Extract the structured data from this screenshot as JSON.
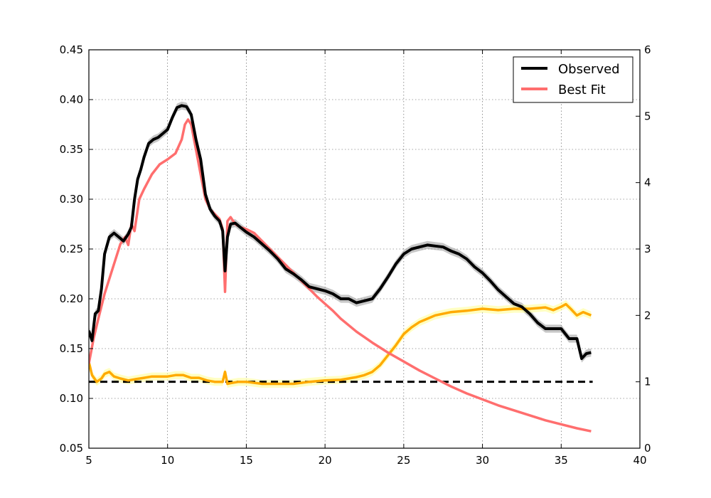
{
  "chart_data": {
    "type": "line",
    "title": "",
    "xlabel": "",
    "ylabel": "",
    "y2label": "",
    "xlim": [
      5,
      40
    ],
    "ylim": [
      0.05,
      0.45
    ],
    "y2lim": [
      0,
      6
    ],
    "x_ticks": [
      "5",
      "10",
      "15",
      "20",
      "25",
      "30",
      "35",
      "40"
    ],
    "y_ticks": [
      "0.05",
      "0.10",
      "0.15",
      "0.20",
      "0.25",
      "0.30",
      "0.35",
      "0.40",
      "0.45"
    ],
    "y2_ticks": [
      "0",
      "1",
      "2",
      "3",
      "4",
      "5",
      "6"
    ],
    "grid": true,
    "legend": {
      "placement": "top-right",
      "entries": [
        "Observed",
        "Best Fit"
      ]
    },
    "colors": {
      "observed": "#000000",
      "observed_band": "#999999",
      "best_fit": "#ff6e6e",
      "ratio": "#ffaa00",
      "ratio_band": "#ffff99",
      "reference": "#000000"
    },
    "series": [
      {
        "name": "Observed",
        "axis": "left",
        "x": [
          5.0,
          5.2,
          5.4,
          5.6,
          5.8,
          6.0,
          6.3,
          6.6,
          6.9,
          7.2,
          7.5,
          7.7,
          7.9,
          8.1,
          8.3,
          8.5,
          8.8,
          9.1,
          9.4,
          9.7,
          10.0,
          10.3,
          10.6,
          10.9,
          11.2,
          11.5,
          11.8,
          12.1,
          12.4,
          12.7,
          13.0,
          13.3,
          13.5,
          13.65,
          13.8,
          14.0,
          14.3,
          14.6,
          15.0,
          15.5,
          16.0,
          16.5,
          17.0,
          17.5,
          18.0,
          18.5,
          19.0,
          19.5,
          20.0,
          20.5,
          21.0,
          21.5,
          22.0,
          22.5,
          23.0,
          23.5,
          24.0,
          24.5,
          25.0,
          25.5,
          26.0,
          26.5,
          27.0,
          27.5,
          28.0,
          28.5,
          29.0,
          29.5,
          30.0,
          30.5,
          31.0,
          31.5,
          32.0,
          32.5,
          33.0,
          33.5,
          34.0,
          34.5,
          35.0,
          35.5,
          36.0,
          36.3,
          36.6,
          36.9
        ],
        "y": [
          0.168,
          0.158,
          0.185,
          0.188,
          0.21,
          0.245,
          0.262,
          0.266,
          0.262,
          0.258,
          0.265,
          0.272,
          0.3,
          0.32,
          0.33,
          0.342,
          0.356,
          0.36,
          0.362,
          0.366,
          0.37,
          0.382,
          0.392,
          0.394,
          0.393,
          0.385,
          0.36,
          0.34,
          0.305,
          0.29,
          0.283,
          0.278,
          0.268,
          0.228,
          0.262,
          0.275,
          0.276,
          0.272,
          0.267,
          0.262,
          0.255,
          0.248,
          0.24,
          0.23,
          0.225,
          0.219,
          0.212,
          0.21,
          0.208,
          0.205,
          0.2,
          0.2,
          0.196,
          0.198,
          0.2,
          0.21,
          0.222,
          0.235,
          0.245,
          0.25,
          0.252,
          0.254,
          0.253,
          0.252,
          0.248,
          0.245,
          0.24,
          0.232,
          0.226,
          0.218,
          0.209,
          0.202,
          0.195,
          0.192,
          0.185,
          0.176,
          0.17,
          0.17,
          0.17,
          0.16,
          0.16,
          0.14,
          0.145,
          0.146
        ]
      },
      {
        "name": "Best Fit",
        "axis": "left",
        "x": [
          5.0,
          5.3,
          5.6,
          6.0,
          6.5,
          7.0,
          7.3,
          7.5,
          7.7,
          7.9,
          8.2,
          8.5,
          9.0,
          9.5,
          10.0,
          10.5,
          10.9,
          11.1,
          11.3,
          11.5,
          11.8,
          12.1,
          12.4,
          12.7,
          13.0,
          13.3,
          13.5,
          13.65,
          13.8,
          14.0,
          14.3,
          14.6,
          15.0,
          15.5,
          16.0,
          16.5,
          17.0,
          17.5,
          18.0,
          18.5,
          19.0,
          19.5,
          20.0,
          20.5,
          21.0,
          22.0,
          23.0,
          24.0,
          25.0,
          26.0,
          27.0,
          28.0,
          29.0,
          30.0,
          31.0,
          32.0,
          33.0,
          34.0,
          35.0,
          36.0,
          36.9
        ],
        "y": [
          0.135,
          0.16,
          0.18,
          0.205,
          0.23,
          0.255,
          0.262,
          0.254,
          0.275,
          0.268,
          0.3,
          0.31,
          0.325,
          0.335,
          0.34,
          0.346,
          0.36,
          0.375,
          0.38,
          0.375,
          0.35,
          0.325,
          0.3,
          0.29,
          0.285,
          0.28,
          0.27,
          0.207,
          0.278,
          0.282,
          0.275,
          0.272,
          0.27,
          0.266,
          0.258,
          0.25,
          0.242,
          0.234,
          0.226,
          0.218,
          0.21,
          0.202,
          0.195,
          0.188,
          0.18,
          0.167,
          0.156,
          0.146,
          0.137,
          0.128,
          0.12,
          0.112,
          0.105,
          0.099,
          0.093,
          0.088,
          0.083,
          0.078,
          0.074,
          0.07,
          0.067
        ]
      },
      {
        "name": "",
        "axis": "right",
        "x": [
          5.0,
          5.2,
          5.5,
          5.8,
          6.0,
          6.3,
          6.6,
          7.0,
          7.5,
          8.0,
          8.5,
          9.0,
          9.5,
          10.0,
          10.5,
          11.0,
          11.5,
          12.0,
          12.5,
          13.0,
          13.5,
          13.65,
          13.8,
          14.0,
          14.5,
          15.0,
          16.0,
          17.0,
          18.0,
          19.0,
          20.0,
          21.0,
          22.0,
          22.5,
          23.0,
          23.5,
          24.0,
          24.5,
          25.0,
          25.5,
          26.0,
          26.5,
          27.0,
          28.0,
          29.0,
          30.0,
          31.0,
          32.0,
          33.0,
          34.0,
          34.5,
          35.0,
          35.3,
          35.6,
          36.0,
          36.4,
          36.9
        ],
        "y": [
          1.3,
          1.1,
          1.0,
          1.05,
          1.12,
          1.15,
          1.08,
          1.05,
          1.02,
          1.04,
          1.06,
          1.08,
          1.08,
          1.08,
          1.1,
          1.1,
          1.06,
          1.06,
          1.02,
          1.0,
          1.0,
          1.15,
          0.97,
          0.98,
          1.0,
          1.0,
          0.97,
          0.97,
          0.97,
          1.0,
          1.02,
          1.03,
          1.07,
          1.1,
          1.15,
          1.25,
          1.4,
          1.55,
          1.72,
          1.82,
          1.9,
          1.95,
          2.0,
          2.05,
          2.07,
          2.1,
          2.08,
          2.1,
          2.1,
          2.12,
          2.08,
          2.13,
          2.17,
          2.1,
          2.0,
          2.05,
          2.0
        ]
      }
    ],
    "reference_line": {
      "axis": "right",
      "y": 1.0
    }
  }
}
